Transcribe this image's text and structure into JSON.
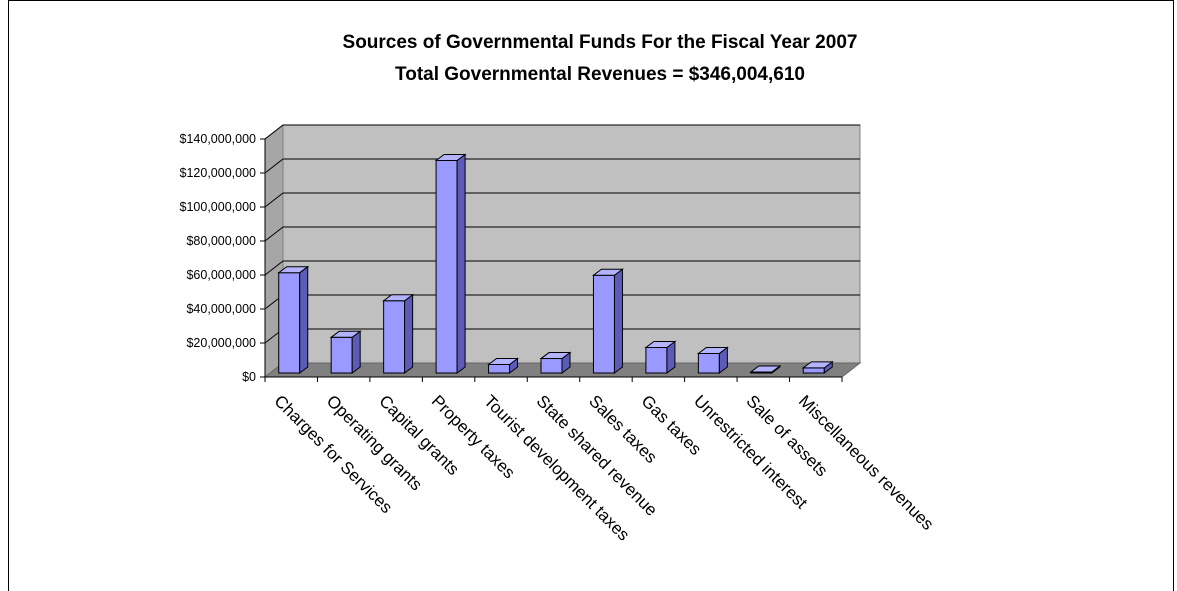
{
  "chart_data": {
    "type": "bar",
    "title": [
      "Sources of Governmental Funds For the Fiscal Year 2007",
      "Total Governmental Revenues = $346,004,610"
    ],
    "categories": [
      "Charges for Services",
      "Operating grants",
      "Capital grants",
      "Property taxes",
      "Tourist development taxes",
      "State shared revenue",
      "Sales taxes",
      "Gas taxes",
      "Unrestricted interest",
      "Sale of assets",
      "Miscellaneous revenues"
    ],
    "values": [
      59000000,
      21000000,
      42500000,
      125000000,
      5000000,
      8500000,
      57500000,
      15000000,
      11500000,
      500000,
      3000000
    ],
    "ylim": [
      0,
      140000000
    ],
    "yticks": [
      0,
      20000000,
      40000000,
      60000000,
      80000000,
      100000000,
      120000000,
      140000000
    ],
    "ytick_labels": [
      "$0",
      "$20,000,000",
      "$40,000,000",
      "$60,000,000",
      "$80,000,000",
      "$100,000,000",
      "$120,000,000",
      "$140,000,000"
    ],
    "grid": true,
    "legend": "none",
    "colors": {
      "bar_front": "#9999ff",
      "bar_top": "#b3b3ff",
      "bar_side": "#5c5cb8",
      "wall": "#c0c0c0",
      "wall_side": "#a6a6a6",
      "floor": "#808080"
    }
  }
}
